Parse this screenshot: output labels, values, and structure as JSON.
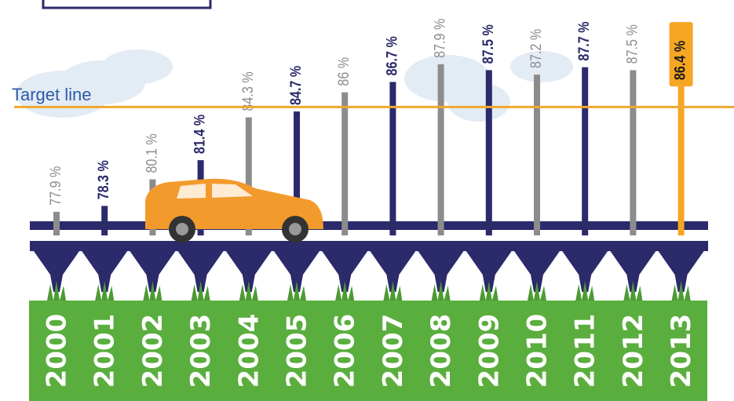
{
  "chart_data": {
    "type": "bar",
    "categories": [
      "2000",
      "2001",
      "2002",
      "2003",
      "2004",
      "2005",
      "2006",
      "2007",
      "2008",
      "2009",
      "2010",
      "2011",
      "2012",
      "2013"
    ],
    "values": [
      77.9,
      78.3,
      80.1,
      81.4,
      84.3,
      84.7,
      86,
      86.7,
      87.9,
      87.5,
      87.2,
      87.7,
      87.5,
      86.4
    ],
    "value_labels": [
      "77.9 %",
      "78.3 %",
      "80.1 %",
      "81.4 %",
      "84.3 %",
      "84.7 %",
      "86 %",
      "86.7 %",
      "87.9 %",
      "87.5 %",
      "87.2 %",
      "87.7 %",
      "87.5 %",
      "86.4 %"
    ],
    "colors": [
      "#8c8c8c",
      "#2b2a6b",
      "#8c8c8c",
      "#2b2a6b",
      "#8c8c8c",
      "#2b2a6b",
      "#8c8c8c",
      "#2b2a6b",
      "#8c8c8c",
      "#2b2a6b",
      "#8c8c8c",
      "#2b2a6b",
      "#8c8c8c",
      "#f5a623"
    ],
    "ylim": [
      76.3,
      90
    ],
    "target": 85,
    "target_label": "Target line",
    "target_color": "#f0a830"
  }
}
